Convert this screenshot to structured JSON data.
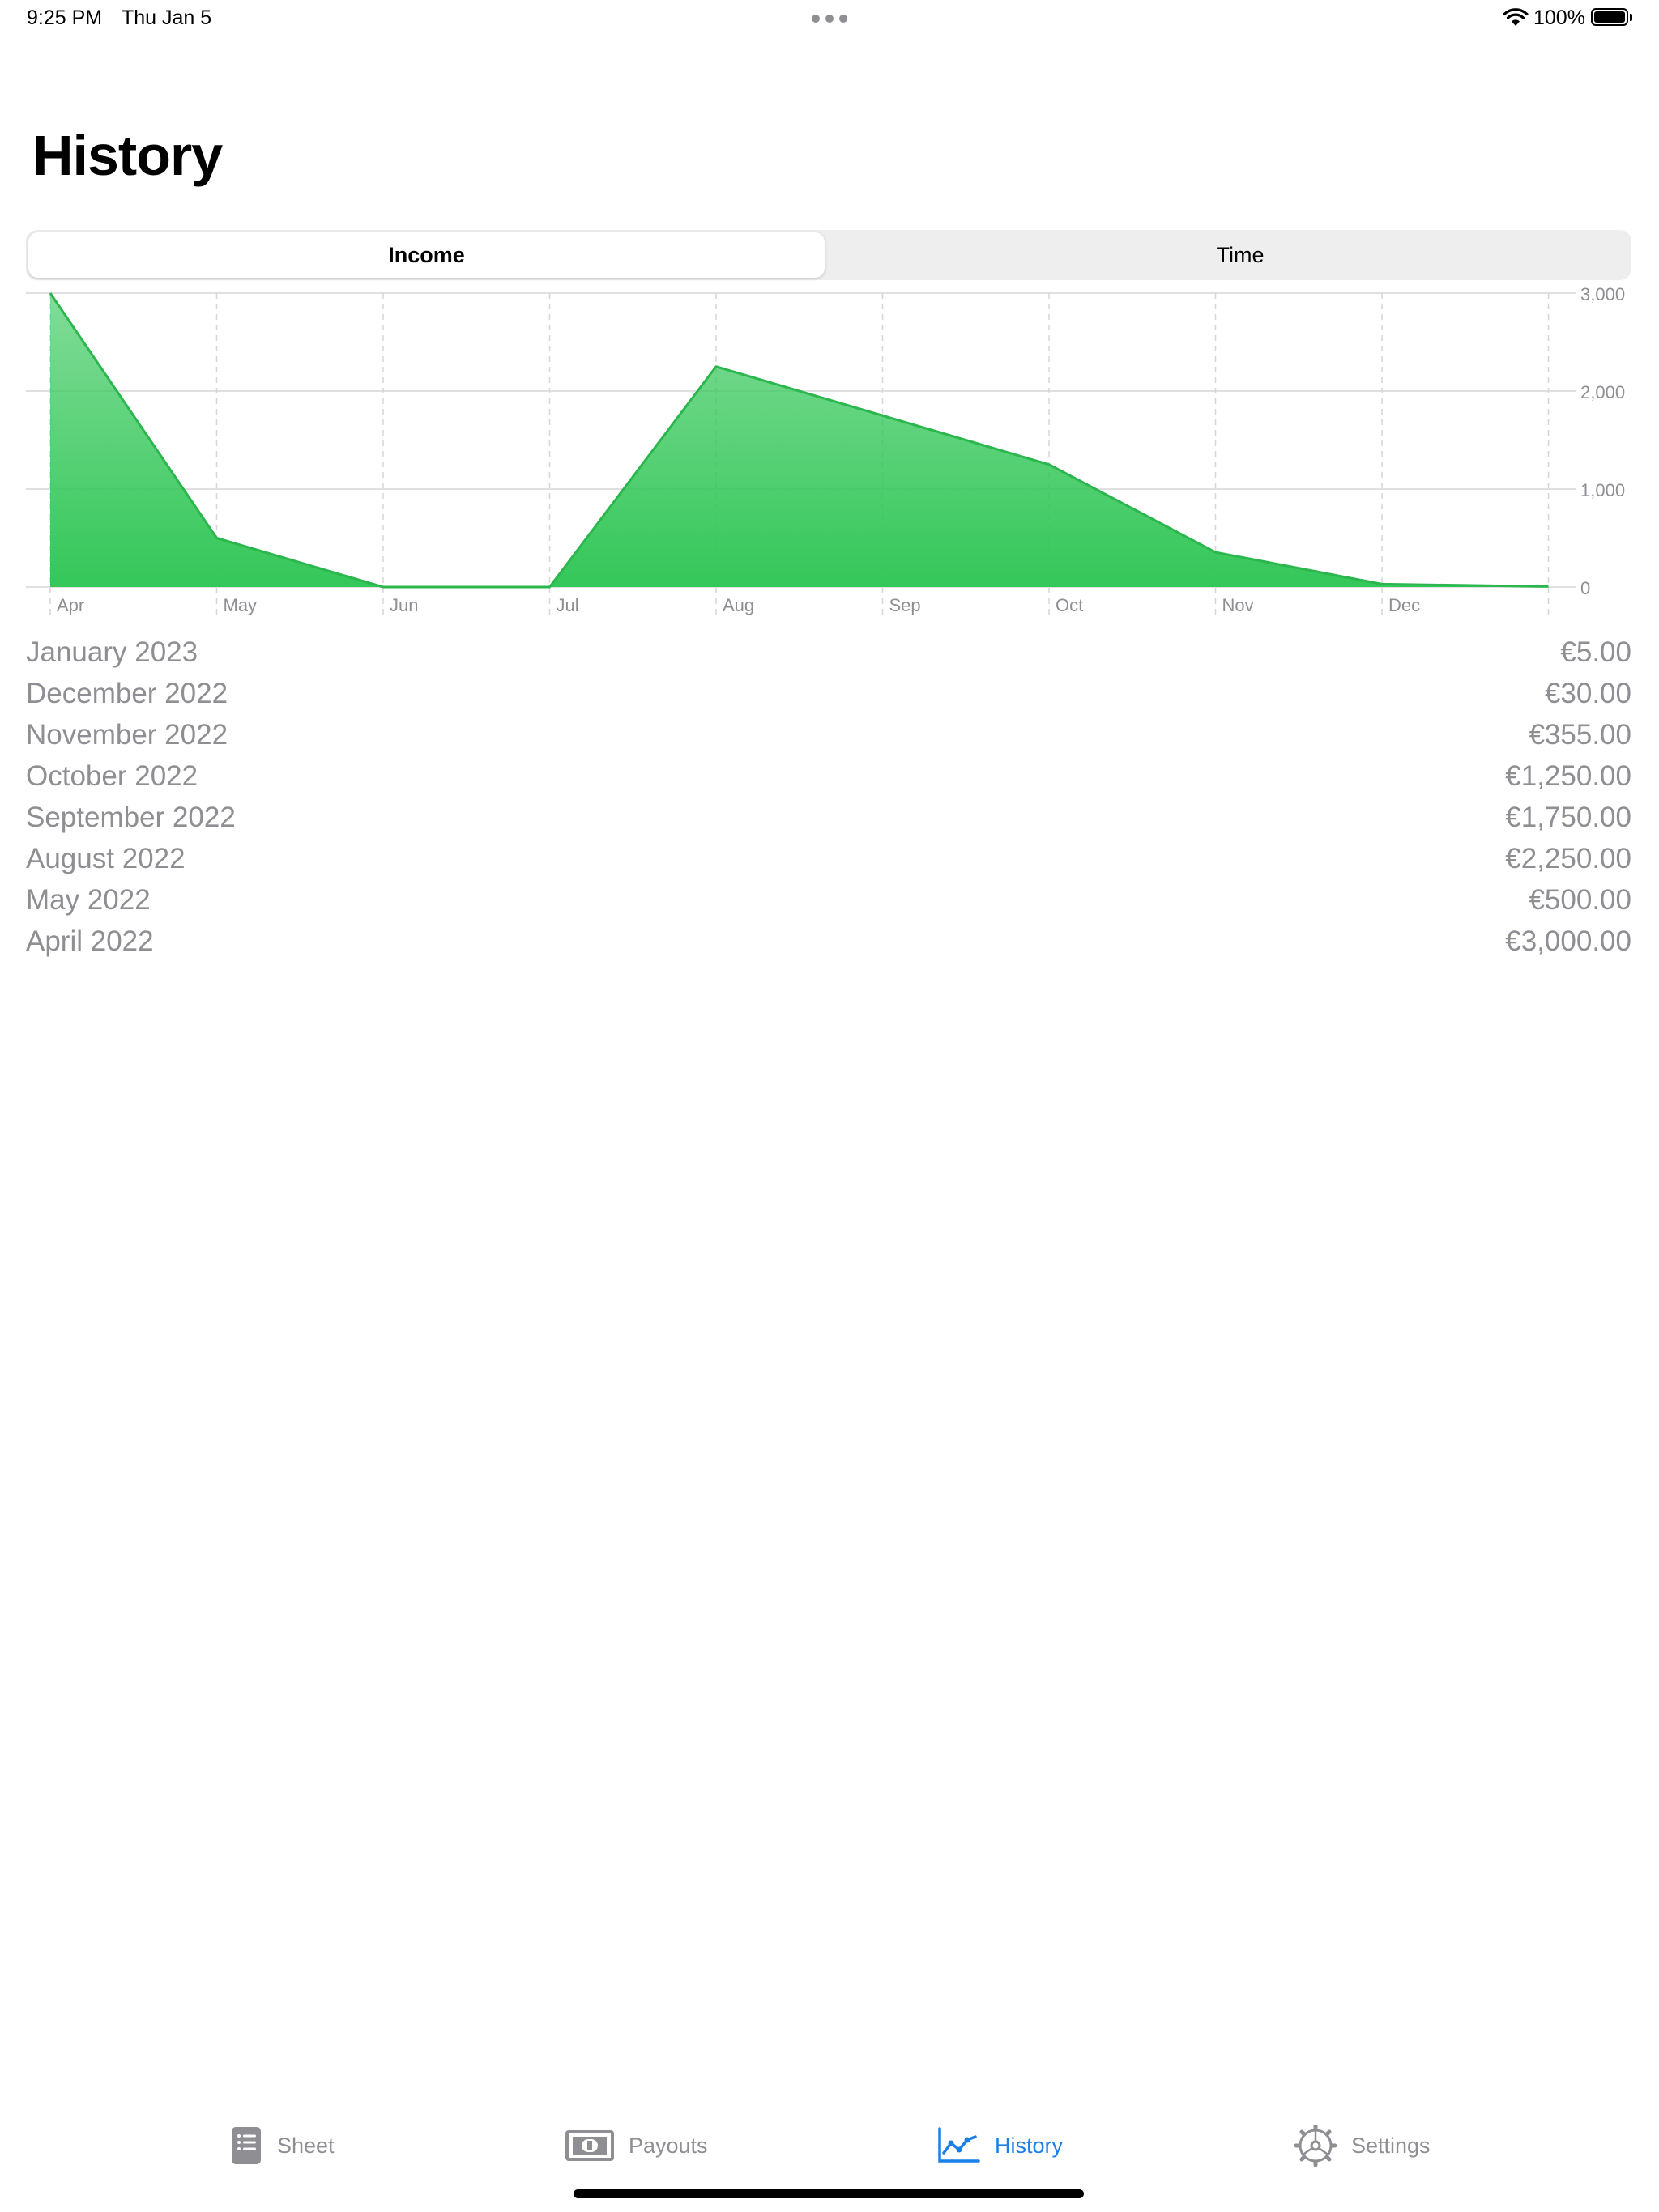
{
  "status_bar": {
    "time": "9:25 PM",
    "date": "Thu Jan 5",
    "battery": "100%"
  },
  "title": "History",
  "segments": [
    {
      "label": "Income",
      "selected": true
    },
    {
      "label": "Time",
      "selected": false
    }
  ],
  "chart_data": {
    "type": "area",
    "categories": [
      "Apr",
      "May",
      "Jun",
      "Jul",
      "Aug",
      "Sep",
      "Oct",
      "Nov",
      "Dec",
      ""
    ],
    "values": [
      3000,
      500,
      0,
      0,
      2250,
      1750,
      1250,
      355,
      30,
      5
    ],
    "y_ticks": [
      "3,000",
      "2,000",
      "1,000",
      "0"
    ],
    "ylim": [
      0,
      3000
    ],
    "grid": true,
    "color": "#34c759"
  },
  "history": [
    {
      "month": "January 2023",
      "amount": "€5.00"
    },
    {
      "month": "December 2022",
      "amount": "€30.00"
    },
    {
      "month": "November 2022",
      "amount": "€355.00"
    },
    {
      "month": "October 2022",
      "amount": "€1,250.00"
    },
    {
      "month": "September 2022",
      "amount": "€1,750.00"
    },
    {
      "month": "August 2022",
      "amount": "€2,250.00"
    },
    {
      "month": "May 2022",
      "amount": "€500.00"
    },
    {
      "month": "April 2022",
      "amount": "€3,000.00"
    }
  ],
  "tabs": [
    {
      "label": "Sheet",
      "icon": "sheet-icon",
      "active": false
    },
    {
      "label": "Payouts",
      "icon": "banknote-icon",
      "active": false
    },
    {
      "label": "History",
      "icon": "chart-line-icon",
      "active": true
    },
    {
      "label": "Settings",
      "icon": "gear-icon",
      "active": false
    }
  ],
  "colors": {
    "accent": "#1a7fe8",
    "chart": "#34c759",
    "secondary_text": "#8e8e93"
  }
}
